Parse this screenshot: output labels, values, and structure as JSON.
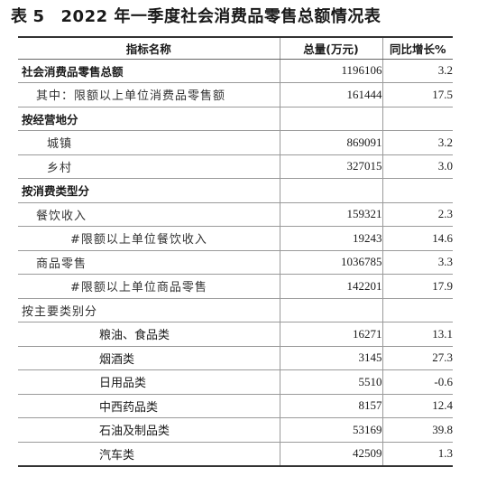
{
  "title": {
    "prefix": "表",
    "number": "5",
    "text": "2022 年一季度社会消费品零售总额情况表"
  },
  "table": {
    "headers": [
      "指标名称",
      "总量(万元)",
      "同比增长%"
    ],
    "rows": [
      {
        "label": "社会消费品零售总额",
        "value": "1196106",
        "growth": "3.2"
      },
      {
        "label": "其中：限额以上单位消费品零售额",
        "value": "161444",
        "growth": "17.5"
      },
      {
        "label": "按经营地分",
        "value": "",
        "growth": ""
      },
      {
        "label": "城镇",
        "value": "869091",
        "growth": "3.2"
      },
      {
        "label": "乡村",
        "value": "327015",
        "growth": "3.0"
      },
      {
        "label": "按消费类型分",
        "value": "",
        "growth": ""
      },
      {
        "label": "餐饮收入",
        "value": "159321",
        "growth": "2.3"
      },
      {
        "label": "#限额以上单位餐饮收入",
        "value": "19243",
        "growth": "14.6"
      },
      {
        "label": "商品零售",
        "value": "1036785",
        "growth": "3.3"
      },
      {
        "label": "#限额以上单位商品零售",
        "value": "142201",
        "growth": "17.9"
      },
      {
        "label": "按主要类别分",
        "value": "",
        "growth": ""
      },
      {
        "label": "粮油、食品类",
        "value": "16271",
        "growth": "13.1"
      },
      {
        "label": "烟酒类",
        "value": "3145",
        "growth": "27.3"
      },
      {
        "label": "日用品类",
        "value": "5510",
        "growth": "-0.6"
      },
      {
        "label": "中西药品类",
        "value": "8157",
        "growth": "12.4"
      },
      {
        "label": "石油及制品类",
        "value": "53169",
        "growth": "39.8"
      },
      {
        "label": "汽车类",
        "value": "42509",
        "growth": "1.3"
      }
    ]
  }
}
